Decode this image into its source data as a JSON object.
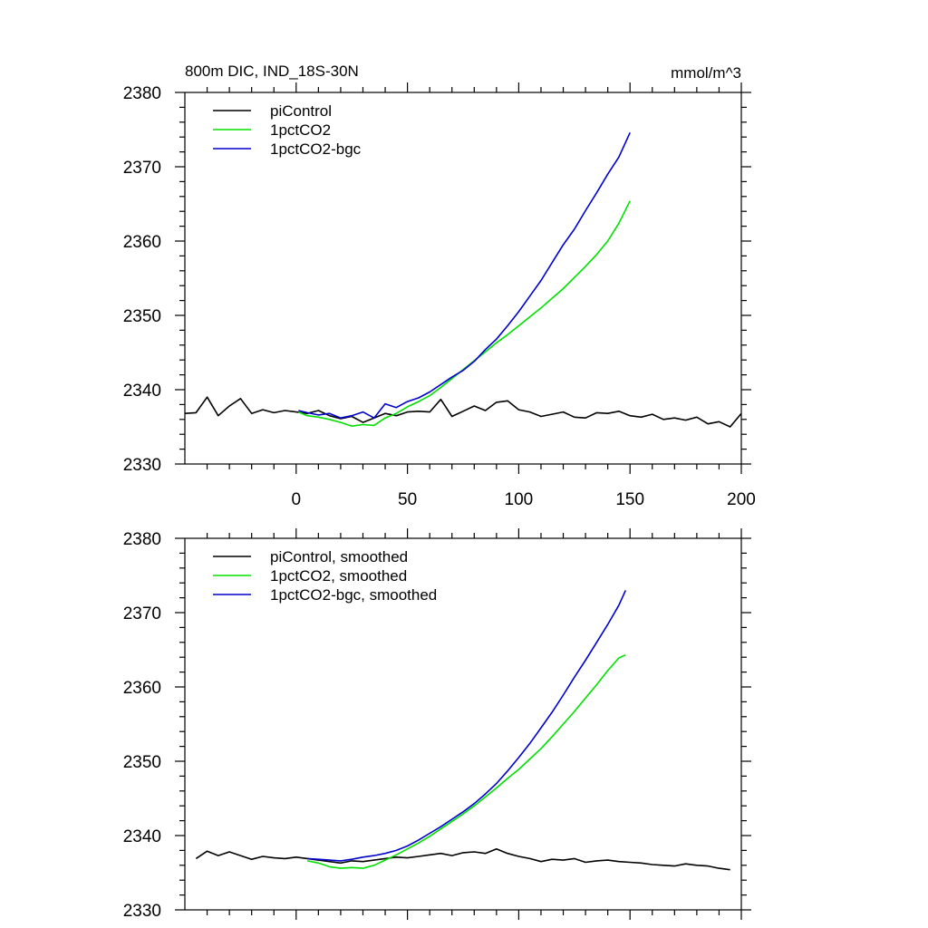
{
  "chart_data": [
    {
      "type": "line",
      "title": "800m DIC, IND_18S-30N",
      "units": "mmol/m^3",
      "xlim": [
        -50,
        200
      ],
      "ylim": [
        2330,
        2380
      ],
      "xticks": [
        "0",
        "50",
        "100",
        "150",
        "200"
      ],
      "yticks": [
        "2330",
        "2340",
        "2350",
        "2360",
        "2370",
        "2380"
      ],
      "grid": false,
      "legend_position": "top-left",
      "series": [
        {
          "name": "piControl",
          "color": "#000000",
          "x": [
            -50,
            -45,
            -40,
            -35,
            -30,
            -25,
            -20,
            -15,
            -10,
            -5,
            0,
            5,
            10,
            15,
            20,
            25,
            30,
            35,
            40,
            45,
            50,
            55,
            60,
            65,
            70,
            75,
            80,
            85,
            90,
            95,
            100,
            105,
            110,
            115,
            120,
            125,
            130,
            135,
            140,
            145,
            150,
            155,
            160,
            165,
            170,
            175,
            180,
            185,
            190,
            195,
            200
          ],
          "y": [
            2336.8,
            2336.9,
            2339.0,
            2336.5,
            2337.8,
            2338.8,
            2336.8,
            2337.3,
            2336.9,
            2337.2,
            2337.0,
            2336.8,
            2337.2,
            2336.5,
            2336.1,
            2336.4,
            2335.6,
            2336.2,
            2336.8,
            2336.5,
            2337.0,
            2337.1,
            2337.0,
            2338.7,
            2336.4,
            2337.1,
            2337.8,
            2337.2,
            2338.3,
            2338.5,
            2337.3,
            2337.0,
            2336.4,
            2336.7,
            2337.0,
            2336.3,
            2336.2,
            2336.9,
            2336.8,
            2337.1,
            2336.5,
            2336.3,
            2336.7,
            2336.0,
            2336.2,
            2335.9,
            2336.3,
            2335.4,
            2335.7,
            2335.0,
            2336.8
          ]
        },
        {
          "name": "1pctCO2",
          "color": "#00e000",
          "x": [
            1,
            5,
            10,
            15,
            20,
            25,
            30,
            35,
            40,
            45,
            50,
            55,
            60,
            65,
            70,
            75,
            80,
            85,
            90,
            95,
            100,
            105,
            110,
            115,
            120,
            125,
            130,
            135,
            140,
            145,
            150
          ],
          "y": [
            2337.0,
            2336.5,
            2336.3,
            2336.0,
            2335.6,
            2335.1,
            2335.3,
            2335.2,
            2336.2,
            2336.8,
            2337.7,
            2338.4,
            2339.2,
            2340.3,
            2341.5,
            2342.7,
            2343.9,
            2345.1,
            2346.3,
            2347.4,
            2348.6,
            2349.8,
            2351.0,
            2352.3,
            2353.6,
            2355.1,
            2356.6,
            2358.2,
            2360.0,
            2362.4,
            2365.4
          ]
        },
        {
          "name": "1pctCO2-bgc",
          "color": "#0000cc",
          "x": [
            1,
            5,
            10,
            15,
            20,
            25,
            30,
            35,
            40,
            45,
            50,
            55,
            60,
            65,
            70,
            75,
            80,
            85,
            90,
            95,
            100,
            105,
            110,
            115,
            120,
            125,
            130,
            135,
            140,
            145,
            150
          ],
          "y": [
            2337.2,
            2336.9,
            2336.6,
            2336.8,
            2336.2,
            2336.5,
            2337.0,
            2336.2,
            2338.1,
            2337.6,
            2338.4,
            2338.9,
            2339.7,
            2340.7,
            2341.7,
            2342.6,
            2343.8,
            2345.4,
            2346.8,
            2348.6,
            2350.5,
            2352.6,
            2354.7,
            2357.1,
            2359.5,
            2361.6,
            2364.1,
            2366.5,
            2369.0,
            2371.3,
            2374.6
          ]
        }
      ]
    },
    {
      "type": "line",
      "title": "",
      "xlim": [
        -50,
        200
      ],
      "ylim": [
        2330,
        2380
      ],
      "yticks": [
        "2330",
        "2340",
        "2350",
        "2360",
        "2370",
        "2380"
      ],
      "grid": false,
      "legend_position": "top-left",
      "series": [
        {
          "name": "piControl, smoothed",
          "color": "#000000",
          "x": [
            -45,
            -40,
            -35,
            -30,
            -25,
            -20,
            -15,
            -10,
            -5,
            0,
            5,
            10,
            15,
            20,
            25,
            30,
            35,
            40,
            45,
            50,
            55,
            60,
            65,
            70,
            75,
            80,
            85,
            90,
            95,
            100,
            105,
            110,
            115,
            120,
            125,
            130,
            135,
            140,
            145,
            150,
            155,
            160,
            165,
            170,
            175,
            180,
            185,
            190,
            195
          ],
          "y": [
            2336.9,
            2337.9,
            2337.3,
            2337.8,
            2337.3,
            2336.8,
            2337.2,
            2337.0,
            2336.9,
            2337.1,
            2336.9,
            2336.7,
            2336.5,
            2336.3,
            2336.6,
            2336.5,
            2336.7,
            2336.9,
            2337.1,
            2337.0,
            2337.2,
            2337.4,
            2337.6,
            2337.3,
            2337.7,
            2337.8,
            2337.6,
            2338.2,
            2337.6,
            2337.2,
            2336.9,
            2336.5,
            2336.8,
            2336.7,
            2336.9,
            2336.4,
            2336.6,
            2336.7,
            2336.5,
            2336.4,
            2336.3,
            2336.1,
            2336.0,
            2335.9,
            2336.2,
            2336.0,
            2335.9,
            2335.6,
            2335.4
          ]
        },
        {
          "name": "1pctCO2, smoothed",
          "color": "#00e000",
          "x": [
            5,
            10,
            15,
            20,
            25,
            30,
            35,
            40,
            45,
            50,
            55,
            60,
            65,
            70,
            75,
            80,
            85,
            90,
            95,
            100,
            105,
            110,
            115,
            120,
            125,
            130,
            135,
            140,
            145,
            148
          ],
          "y": [
            2336.6,
            2336.3,
            2335.8,
            2335.6,
            2335.7,
            2335.6,
            2336.0,
            2336.7,
            2337.4,
            2338.2,
            2339.0,
            2339.9,
            2340.9,
            2341.9,
            2342.9,
            2344.0,
            2345.2,
            2346.4,
            2347.7,
            2348.9,
            2350.3,
            2351.7,
            2353.3,
            2355.0,
            2356.7,
            2358.5,
            2360.3,
            2362.2,
            2363.9,
            2364.3
          ]
        },
        {
          "name": "1pctCO2-bgc, smoothed",
          "color": "#0000cc",
          "x": [
            5,
            10,
            15,
            20,
            25,
            30,
            35,
            40,
            45,
            50,
            55,
            60,
            65,
            70,
            75,
            80,
            85,
            90,
            95,
            100,
            105,
            110,
            115,
            120,
            125,
            130,
            135,
            140,
            145,
            148
          ],
          "y": [
            2336.9,
            2336.8,
            2336.7,
            2336.6,
            2336.8,
            2337.1,
            2337.3,
            2337.6,
            2338.0,
            2338.6,
            2339.4,
            2340.3,
            2341.2,
            2342.2,
            2343.2,
            2344.3,
            2345.6,
            2347.0,
            2348.7,
            2350.5,
            2352.4,
            2354.5,
            2356.6,
            2358.9,
            2361.3,
            2363.6,
            2366.0,
            2368.4,
            2371.0,
            2373.0
          ]
        }
      ]
    }
  ]
}
